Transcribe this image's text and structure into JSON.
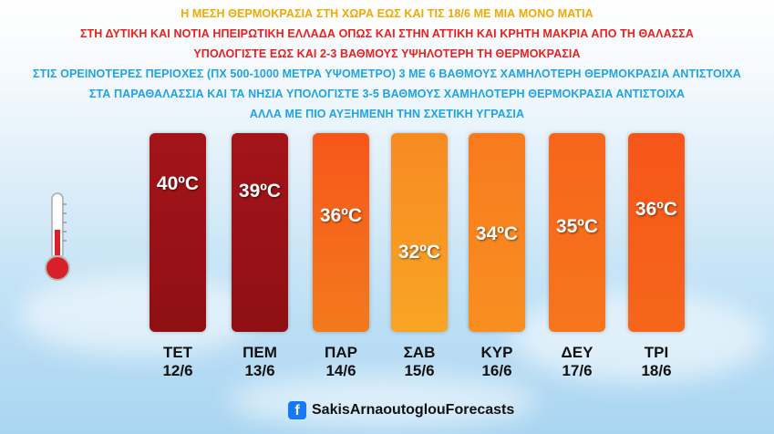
{
  "header_lines": [
    {
      "text": "Η ΜΕΣΗ ΘΕΡΜΟΚΡΑΣΙΑ ΣΤΗ ΧΩΡΑ ΕΩΣ ΚΑΙ ΤΙΣ 18/6 ΜΕ ΜΙΑ ΜΟΝΟ ΜΑΤΙΑ",
      "color": "#f2a900"
    },
    {
      "text": "ΣΤΗ ΔΥΤΙΚΗ ΚΑΙ ΝΟΤΙΑ ΗΠΕΙΡΩΤΙΚΗ ΕΛΛΑΔΑ ΟΠΩΣ ΚΑΙ ΣΤΗΝ ΑΤΤΙΚΗ ΚΑΙ ΚΡΗΤΗ ΜΑΚΡΙΑ ΑΠΟ ΤΗ ΘΑΛΑΣΣΑ",
      "color": "#e8201f"
    },
    {
      "text": "ΥΠΟΛΟΓΙΣΤΕ ΕΩΣ ΚΑΙ 2-3 ΒΑΘΜΟΥΣ ΥΨΗΛΟΤΕΡΗ ΤΗ ΘΕΡΜΟΚΡΑΣΙΑ",
      "color": "#e8201f"
    },
    {
      "text": "ΣΤΙΣ ΟΡΕΙΝΟΤΕΡΕΣ ΠΕΡΙΟΧΕΣ (ΠΧ 500-1000 ΜΕΤΡΑ ΥΨΟΜΕΤΡΟ) 3 ΜΕ 6 ΒΑΘΜΟΥΣ ΧΑΜΗΛΟΤΕΡΗ ΘΕΡΜΟΚΡΑΣΙΑ ΑΝΤΙΣΤΟΙΧΑ",
      "color": "#1ea3e6"
    },
    {
      "text": "ΣΤΑ ΠΑΡΑΘΑΛΑΣΣΙΑ ΚΑΙ ΤΑ ΝΗΣΙΑ ΥΠΟΛΟΓΙΣΤΕ 3-5 ΒΑΘΜΟΥΣ ΧΑΜΗΛΟΤΕΡΗ ΘΕΡΜΟΚΡΑΣΙΑ ΑΝΤΙΣΤΟΙΧΑ",
      "color": "#1ea3e6"
    },
    {
      "text": "ΑΛΛΑ ΜΕ ΠΙΟ ΑΥΞΗΜΕΝΗ ΤΗΝ ΣΧΕΤΙΚΗ ΥΓΡΑΣΙΑ",
      "color": "#1ea3e6"
    }
  ],
  "days": [
    {
      "day": "ΤΕΤ",
      "date": "12/6",
      "temp_label": "40ºC",
      "temp": 40,
      "color_top": "#a3141a",
      "color_bottom": "#8f1014"
    },
    {
      "day": "ΠΕΜ",
      "date": "13/6",
      "temp_label": "39ºC",
      "temp": 39,
      "color_top": "#a3141a",
      "color_bottom": "#8f1014"
    },
    {
      "day": "ΠΑΡ",
      "date": "14/6",
      "temp_label": "36ºC",
      "temp": 36,
      "color_top": "#f7561a",
      "color_bottom": "#f3791c"
    },
    {
      "day": "ΣΑΒ",
      "date": "15/6",
      "temp_label": "32ºC",
      "temp": 32,
      "color_top": "#f88a22",
      "color_bottom": "#f8a524"
    },
    {
      "day": "ΚΥΡ",
      "date": "16/6",
      "temp_label": "34ºC",
      "temp": 34,
      "color_top": "#f87a1e",
      "color_bottom": "#f98f20"
    },
    {
      "day": "ΔΕΥ",
      "date": "17/6",
      "temp_label": "35ºC",
      "temp": 35,
      "color_top": "#f7651b",
      "color_bottom": "#f6761d"
    },
    {
      "day": "ΤΡΙ",
      "date": "18/6",
      "temp_label": "36ºC",
      "temp": 36,
      "color_top": "#f7561a",
      "color_bottom": "#f5661b"
    }
  ],
  "thermometer": {
    "icon": "thermometer-icon",
    "fill_color": "#d6202a"
  },
  "footer": {
    "icon": "facebook-icon",
    "handle": "SakisArnaoutoglouForecasts"
  }
}
